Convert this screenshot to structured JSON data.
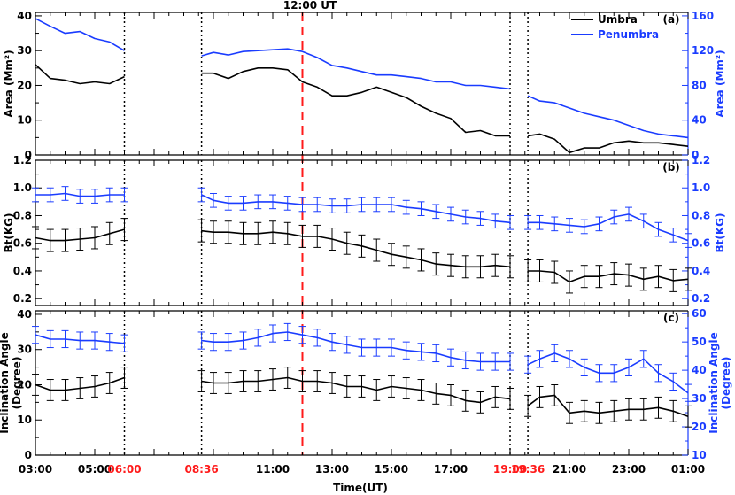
{
  "figure": {
    "top_label": "12:00 UT",
    "xlabel": "Time(UT)",
    "colors": {
      "umbra": "#000000",
      "penumbra": "#1a3cff",
      "event_red": "#ff1a1a"
    },
    "x_ticks": [
      {
        "label": "03:00",
        "h": 3,
        "color": "#000000"
      },
      {
        "label": "05:00",
        "h": 5,
        "color": "#000000"
      },
      {
        "label": "06:00",
        "h": 6,
        "color": "#ff1a1a"
      },
      {
        "label": "08:36",
        "h": 8.6,
        "color": "#ff1a1a"
      },
      {
        "label": "11:00",
        "h": 11,
        "color": "#000000"
      },
      {
        "label": "13:00",
        "h": 13,
        "color": "#000000"
      },
      {
        "label": "15:00",
        "h": 15,
        "color": "#000000"
      },
      {
        "label": "17:00",
        "h": 17,
        "color": "#000000"
      },
      {
        "label": "19:00",
        "h": 19,
        "color": "#ff1a1a"
      },
      {
        "label": "19:36",
        "h": 19.6,
        "color": "#ff1a1a"
      },
      {
        "label": "21:00",
        "h": 21,
        "color": "#000000"
      },
      {
        "label": "23:00",
        "h": 23,
        "color": "#000000"
      },
      {
        "label": "01:00",
        "h": 25,
        "color": "#000000"
      }
    ],
    "dotted_lines_h": [
      6,
      8.6,
      19,
      19.6
    ],
    "dashed_line_h": 12
  },
  "chart_data": [
    {
      "type": "line",
      "panel": "(a)",
      "ylabel_left": "Area (Mm²)",
      "ylabel_right": "Area (Mm²)",
      "ylim_left": [
        0,
        41
      ],
      "ylim_right": [
        0,
        164
      ],
      "yticks_left": [
        0,
        10,
        20,
        30,
        40
      ],
      "yticks_right": [
        0,
        40,
        80,
        120,
        160
      ],
      "legend": [
        "Umbra",
        "Penumbra"
      ],
      "legend_position": "top-right",
      "series": [
        {
          "name": "Umbra",
          "axis": "left",
          "segments": [
            {
              "x": [
                3,
                3.5,
                4,
                4.5,
                5,
                5.5,
                6
              ],
              "y": [
                26,
                22,
                21.5,
                20.5,
                21,
                20.5,
                22.5
              ]
            },
            {
              "x": [
                8.6,
                9,
                9.5,
                10,
                10.5,
                11,
                11.5,
                12,
                12.5,
                13,
                13.5,
                14,
                14.5,
                15,
                15.5,
                16,
                16.5,
                17,
                17.5,
                18,
                18.5,
                19
              ],
              "y": [
                23.5,
                23.5,
                22,
                24,
                25,
                25,
                24.5,
                21,
                19.5,
                17,
                17,
                18,
                19.5,
                18,
                16.5,
                14,
                12,
                10.5,
                6.5,
                7,
                5.5,
                5.5
              ]
            },
            {
              "x": [
                19.6,
                20,
                20.5,
                21,
                21.5,
                22,
                22.5,
                23,
                23.5,
                24,
                24.5,
                25
              ],
              "y": [
                5.5,
                6,
                4.5,
                0.7,
                2,
                2,
                3.5,
                4,
                3.5,
                3.5,
                3,
                2.5
              ]
            }
          ]
        },
        {
          "name": "Penumbra",
          "axis": "right",
          "segments": [
            {
              "x": [
                3,
                3.5,
                4,
                4.5,
                5,
                5.5,
                6
              ],
              "y": [
                157,
                148,
                140,
                142,
                134,
                130,
                120
              ]
            },
            {
              "x": [
                8.6,
                9,
                9.5,
                10,
                10.5,
                11,
                11.5,
                12,
                12.5,
                13,
                13.5,
                14,
                14.5,
                15,
                15.5,
                16,
                16.5,
                17,
                17.5,
                18,
                18.5,
                19
              ],
              "y": [
                114,
                118,
                115,
                119,
                120,
                121,
                122,
                119,
                112,
                103,
                100,
                96,
                92,
                92,
                90,
                88,
                84,
                84,
                80,
                80,
                78,
                76
              ]
            },
            {
              "x": [
                19.6,
                20,
                20.5,
                21,
                21.5,
                22,
                22.5,
                23,
                23.5,
                24,
                24.5,
                25
              ],
              "y": [
                68,
                62,
                60,
                54,
                48,
                44,
                40,
                34,
                28,
                24,
                22,
                20
              ]
            }
          ]
        }
      ]
    },
    {
      "type": "line",
      "panel": "(b)",
      "ylabel_left": "Bt(KG)",
      "ylabel_right": "Bt(KG)",
      "ylim_left": [
        0.15,
        1.2
      ],
      "ylim_right": [
        0.15,
        1.2
      ],
      "yticks": [
        0.2,
        0.4,
        0.6,
        0.8,
        1.0,
        1.2
      ],
      "error_bars": true,
      "series": [
        {
          "name": "Umbra",
          "err": 0.08,
          "segments": [
            {
              "x": [
                3,
                3.5,
                4,
                4.5,
                5,
                5.5,
                6
              ],
              "y": [
                0.64,
                0.62,
                0.62,
                0.63,
                0.64,
                0.67,
                0.7
              ]
            },
            {
              "x": [
                8.6,
                9,
                9.5,
                10,
                10.5,
                11,
                11.5,
                12,
                12.5,
                13,
                13.5,
                14,
                14.5,
                15,
                15.5,
                16,
                16.5,
                17,
                17.5,
                18,
                18.5,
                19
              ],
              "y": [
                0.69,
                0.68,
                0.68,
                0.67,
                0.67,
                0.68,
                0.67,
                0.65,
                0.65,
                0.63,
                0.6,
                0.58,
                0.55,
                0.52,
                0.5,
                0.48,
                0.45,
                0.44,
                0.43,
                0.43,
                0.44,
                0.43
              ]
            },
            {
              "x": [
                19.6,
                20,
                20.5,
                21,
                21.5,
                22,
                22.5,
                23,
                23.5,
                24,
                24.5,
                25
              ],
              "y": [
                0.4,
                0.4,
                0.39,
                0.32,
                0.36,
                0.36,
                0.38,
                0.37,
                0.34,
                0.36,
                0.33,
                0.34
              ]
            }
          ]
        },
        {
          "name": "Penumbra",
          "err": 0.05,
          "segments": [
            {
              "x": [
                3,
                3.5,
                4,
                4.5,
                5,
                5.5,
                6
              ],
              "y": [
                0.95,
                0.95,
                0.96,
                0.94,
                0.94,
                0.95,
                0.95
              ]
            },
            {
              "x": [
                8.6,
                9,
                9.5,
                10,
                10.5,
                11,
                11.5,
                12,
                12.5,
                13,
                13.5,
                14,
                14.5,
                15,
                15.5,
                16,
                16.5,
                17,
                17.5,
                18,
                18.5,
                19
              ],
              "y": [
                0.95,
                0.91,
                0.89,
                0.89,
                0.9,
                0.9,
                0.89,
                0.88,
                0.88,
                0.87,
                0.87,
                0.88,
                0.88,
                0.88,
                0.86,
                0.85,
                0.83,
                0.81,
                0.79,
                0.78,
                0.76,
                0.75
              ]
            },
            {
              "x": [
                19.6,
                20,
                20.5,
                21,
                21.5,
                22,
                22.5,
                23,
                23.5,
                24,
                24.5,
                25
              ],
              "y": [
                0.75,
                0.75,
                0.74,
                0.73,
                0.72,
                0.74,
                0.79,
                0.81,
                0.76,
                0.7,
                0.66,
                0.62
              ]
            }
          ]
        }
      ]
    },
    {
      "type": "line",
      "panel": "(c)",
      "ylabel_left": [
        "Inclination Angle",
        "(Degree)"
      ],
      "ylabel_right": [
        "Inclination Angle",
        "(Degree)"
      ],
      "ylim_left": [
        0,
        41
      ],
      "ylim_right": [
        10,
        61
      ],
      "yticks_left": [
        0,
        10,
        20,
        30,
        40
      ],
      "yticks_right": [
        10,
        20,
        30,
        40,
        50,
        60
      ],
      "error_bars": true,
      "series": [
        {
          "name": "Umbra",
          "axis": "left",
          "err": 3,
          "segments": [
            {
              "x": [
                3,
                3.5,
                4,
                4.5,
                5,
                5.5,
                6
              ],
              "y": [
                20,
                18.5,
                18.5,
                19,
                19.5,
                20.5,
                22
              ]
            },
            {
              "x": [
                8.6,
                9,
                9.5,
                10,
                10.5,
                11,
                11.5,
                12,
                12.5,
                13,
                13.5,
                14,
                14.5,
                15,
                15.5,
                16,
                16.5,
                17,
                17.5,
                18,
                18.5,
                19
              ],
              "y": [
                21,
                20.5,
                20.5,
                21,
                21,
                21.5,
                22,
                21,
                21,
                20.5,
                19.5,
                19.5,
                18.5,
                19.5,
                19,
                18.5,
                17.5,
                17,
                15.5,
                15,
                16.5,
                16
              ]
            },
            {
              "x": [
                19.6,
                20,
                20.5,
                21,
                21.5,
                22,
                22.5,
                23,
                23.5,
                24,
                24.5,
                25
              ],
              "y": [
                14,
                16.5,
                17,
                12,
                12.5,
                12,
                12.5,
                13,
                13,
                13.5,
                12.5,
                11
              ]
            }
          ]
        },
        {
          "name": "Penumbra",
          "axis": "right",
          "err": 3,
          "segments": [
            {
              "x": [
                3,
                3.5,
                4,
                4.5,
                5,
                5.5,
                6
              ],
              "y": [
                52.5,
                51,
                51,
                50.5,
                50.5,
                50,
                49.5
              ]
            },
            {
              "x": [
                8.6,
                9,
                9.5,
                10,
                10.5,
                11,
                11.5,
                12,
                12.5,
                13,
                13.5,
                14,
                14.5,
                15,
                15.5,
                16,
                16.5,
                17,
                17.5,
                18,
                18.5,
                19
              ],
              "y": [
                50.5,
                50,
                50,
                50.5,
                51.5,
                53,
                53.5,
                52.5,
                51.5,
                50,
                49,
                48,
                48,
                48,
                47,
                46.5,
                46,
                44.5,
                43.5,
                43,
                43,
                43
              ]
            },
            {
              "x": [
                19.6,
                20,
                20.5,
                21,
                21.5,
                22,
                22.5,
                23,
                23.5,
                24,
                24.5,
                25
              ],
              "y": [
                42,
                44,
                46,
                44,
                41,
                39,
                39,
                41,
                44,
                39,
                36,
                32
              ]
            }
          ]
        }
      ]
    }
  ]
}
